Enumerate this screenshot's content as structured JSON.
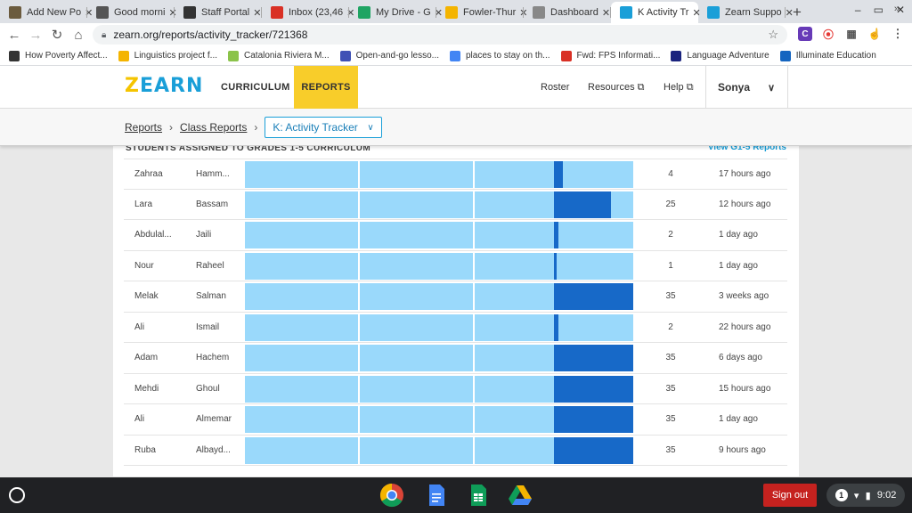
{
  "browser": {
    "tabs": [
      {
        "label": "Add New Po",
        "icon": "add-new-post-icon",
        "color": "#6b5b3e"
      },
      {
        "label": "Good morni",
        "icon": "globe-icon",
        "color": "#555555"
      },
      {
        "label": "Staff Portal",
        "icon": "staff-portal-icon",
        "color": "#333333"
      },
      {
        "label": "Inbox (23,46",
        "icon": "gmail-icon",
        "color": "#d93025"
      },
      {
        "label": "My Drive - G",
        "icon": "drive-icon",
        "color": "#1fa463"
      },
      {
        "label": "Fowler-Thur",
        "icon": "slides-icon",
        "color": "#f4b400"
      },
      {
        "label": "Dashboard",
        "icon": "dashboard-icon",
        "color": "#888888"
      },
      {
        "label": "K Activity Tr",
        "icon": "zearn-icon",
        "color": "#1a9fd8",
        "active": true
      },
      {
        "label": "Zearn Suppo",
        "icon": "zearn-icon",
        "color": "#1a9fd8"
      }
    ],
    "url": "zearn.org/reports/activity_tracker/721368",
    "bookmarks": [
      {
        "label": "How Poverty Affect...",
        "color": "#333333"
      },
      {
        "label": "Linguistics project f...",
        "color": "#f4b400"
      },
      {
        "label": "Catalonia Riviera M...",
        "color": "#8bc34a"
      },
      {
        "label": "Open-and-go lesso...",
        "color": "#3f51b5"
      },
      {
        "label": "places to stay on th...",
        "color": "#4285f4"
      },
      {
        "label": "Fwd: FPS Informati...",
        "color": "#d93025"
      },
      {
        "label": "Language Adventure",
        "color": "#1a237e"
      },
      {
        "label": "Illuminate Education",
        "color": "#1565c0"
      }
    ]
  },
  "zearn": {
    "logo": "ZEARN",
    "nav_curriculum": "CURRICULUM",
    "nav_reports": "REPORTS",
    "roster": "Roster",
    "resources": "Resources",
    "help": "Help",
    "user": "Sonya",
    "breadcrumb": {
      "reports": "Reports",
      "class_reports": "Class Reports",
      "selected": "K: Activity Tracker"
    }
  },
  "report": {
    "section_title": "STUDENTS ASSIGNED TO GRADES 1-5 CURRICULUM",
    "section_link": "View G1-5 Reports",
    "progress_scale_max": 35,
    "students": [
      {
        "first": "Zahraa",
        "last": "Hamm...",
        "count": "4",
        "last_active": "17 hours ago",
        "progress": 4
      },
      {
        "first": "Lara",
        "last": "Bassam",
        "count": "25",
        "last_active": "12 hours ago",
        "progress": 25
      },
      {
        "first": "Abdulal...",
        "last": "Jaili",
        "count": "2",
        "last_active": "1 day ago",
        "progress": 2
      },
      {
        "first": "Nour",
        "last": "Raheel",
        "count": "1",
        "last_active": "1 day ago",
        "progress": 1
      },
      {
        "first": "Melak",
        "last": "Salman",
        "count": "35",
        "last_active": "3 weeks ago",
        "progress": 35
      },
      {
        "first": "Ali",
        "last": "Ismail",
        "count": "2",
        "last_active": "22 hours ago",
        "progress": 2
      },
      {
        "first": "Adam",
        "last": "Hachem",
        "count": "35",
        "last_active": "6 days ago",
        "progress": 35
      },
      {
        "first": "Mehdi",
        "last": "Ghoul",
        "count": "35",
        "last_active": "15 hours ago",
        "progress": 35
      },
      {
        "first": "Ali",
        "last": "Almemar",
        "count": "35",
        "last_active": "1 day ago",
        "progress": 35
      },
      {
        "first": "Ruba",
        "last": "Albayd...",
        "count": "35",
        "last_active": "9 hours ago",
        "progress": 35
      }
    ]
  },
  "shelf": {
    "signout": "Sign out",
    "notifications": "1",
    "time": "9:02"
  }
}
